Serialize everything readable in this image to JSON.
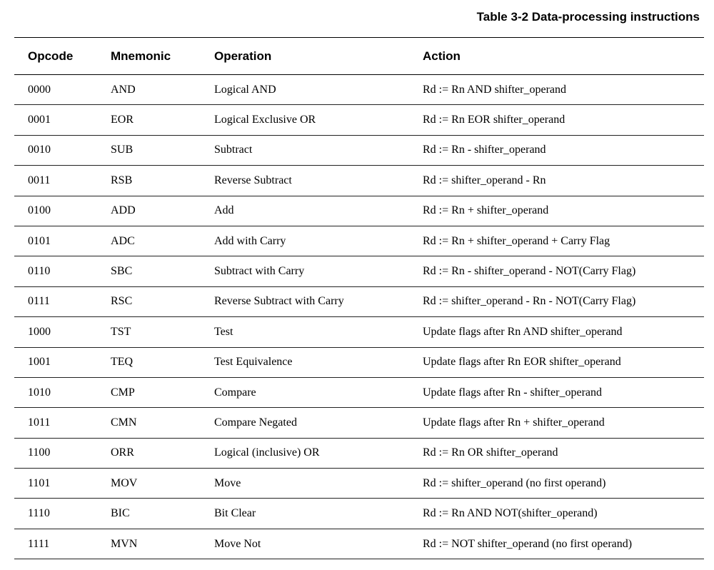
{
  "caption": "Table 3-2 Data-processing instructions",
  "headers": [
    "Opcode",
    "Mnemonic",
    "Operation",
    "Action"
  ],
  "rows": [
    [
      "0000",
      "AND",
      "Logical AND",
      "Rd := Rn AND shifter_operand"
    ],
    [
      "0001",
      "EOR",
      "Logical Exclusive OR",
      "Rd := Rn EOR shifter_operand"
    ],
    [
      "0010",
      "SUB",
      "Subtract",
      "Rd := Rn - shifter_operand"
    ],
    [
      "0011",
      "RSB",
      "Reverse Subtract",
      "Rd := shifter_operand - Rn"
    ],
    [
      "0100",
      "ADD",
      "Add",
      "Rd := Rn + shifter_operand"
    ],
    [
      "0101",
      "ADC",
      "Add with Carry",
      "Rd := Rn + shifter_operand + Carry Flag"
    ],
    [
      "0110",
      "SBC",
      "Subtract with Carry",
      "Rd := Rn - shifter_operand - NOT(Carry Flag)"
    ],
    [
      "0111",
      "RSC",
      "Reverse Subtract with Carry",
      "Rd := shifter_operand - Rn - NOT(Carry Flag)"
    ],
    [
      "1000",
      "TST",
      "Test",
      "Update flags after Rn AND shifter_operand"
    ],
    [
      "1001",
      "TEQ",
      "Test Equivalence",
      "Update flags after Rn EOR shifter_operand"
    ],
    [
      "1010",
      "CMP",
      "Compare",
      "Update flags after Rn - shifter_operand"
    ],
    [
      "1011",
      "CMN",
      "Compare Negated",
      "Update flags after Rn + shifter_operand"
    ],
    [
      "1100",
      "ORR",
      "Logical (inclusive) OR",
      "Rd := Rn OR shifter_operand"
    ],
    [
      "1101",
      "MOV",
      "Move",
      "Rd := shifter_operand (no first operand)"
    ],
    [
      "1110",
      "BIC",
      "Bit Clear",
      "Rd := Rn AND NOT(shifter_operand)"
    ],
    [
      "1111",
      "MVN",
      "Move Not",
      "Rd := NOT shifter_operand (no first operand)"
    ]
  ]
}
